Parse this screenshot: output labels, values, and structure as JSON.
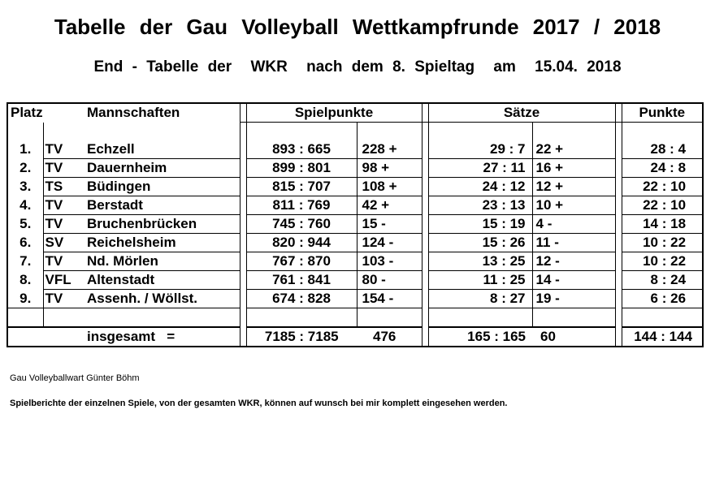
{
  "title": "Tabelle der Gau Volleyball Wettkampfrunde 2017 / 2018",
  "subtitle": {
    "part1": "End - Tabelle der",
    "part2": "WKR",
    "part3": "nach dem 8. Spieltag",
    "part4": "am",
    "part5": "15.04. 2018"
  },
  "headers": {
    "platz": "Platz",
    "mannschaften": "Mannschaften",
    "spielpunkte": "Spielpunkte",
    "saetze": "Sätze",
    "punkte": "Punkte"
  },
  "rows": [
    {
      "platz": "1.",
      "art": "TV",
      "name": "Echzell",
      "sp": "893 : 665",
      "spdiff": "228 +",
      "saetze": "29 : 7",
      "sdiff": "22 +",
      "punkte": "28 : 4"
    },
    {
      "platz": "2.",
      "art": "TV",
      "name": "Dauernheim",
      "sp": "899 : 801",
      "spdiff": "98 +",
      "saetze": "27 : 11",
      "sdiff": "16 +",
      "punkte": "24 : 8"
    },
    {
      "platz": "3.",
      "art": "TS",
      "name": "Büdingen",
      "sp": "815 : 707",
      "spdiff": "108 +",
      "saetze": "24 : 12",
      "sdiff": "12 +",
      "punkte": "22 : 10"
    },
    {
      "platz": "4.",
      "art": "TV",
      "name": "Berstadt",
      "sp": "811 : 769",
      "spdiff": "42 +",
      "saetze": "23 : 13",
      "sdiff": "10 +",
      "punkte": "22 : 10"
    },
    {
      "platz": "5.",
      "art": "TV",
      "name": "Bruchenbrücken",
      "sp": "745 : 760",
      "spdiff": "15 -",
      "saetze": "15 : 19",
      "sdiff": "4 -",
      "punkte": "14 : 18"
    },
    {
      "platz": "6.",
      "art": "SV",
      "name": "Reichelsheim",
      "sp": "820 : 944",
      "spdiff": "124 -",
      "saetze": "15 : 26",
      "sdiff": "11 -",
      "punkte": "10 : 22"
    },
    {
      "platz": "7.",
      "art": "TV",
      "name": "Nd. Mörlen",
      "sp": "767 : 870",
      "spdiff": "103 -",
      "saetze": "13 : 25",
      "sdiff": "12 -",
      "punkte": "10 : 22"
    },
    {
      "platz": "8.",
      "art": "VFL",
      "name": "Altenstadt",
      "sp": "761 : 841",
      "spdiff": "80 -",
      "saetze": "11 : 25",
      "sdiff": "14 -",
      "punkte": "8 : 24"
    },
    {
      "platz": "9.",
      "art": "TV",
      "name": "Assenh. / Wöllst.",
      "sp": "674 : 828",
      "spdiff": "154 -",
      "saetze": "8 : 27",
      "sdiff": "19 -",
      "punkte": "6 : 26"
    }
  ],
  "total": {
    "label": "insgesamt   =",
    "sp": "7185 : 7185",
    "spdiff": "476",
    "saetze": "165 : 165",
    "sdiff": "60",
    "punkte": "144 : 144"
  },
  "footer": {
    "author": "Gau Volleyballwart  Günter Böhm",
    "note": "Spielberichte der einzelnen Spiele, von der gesamten WKR, können auf wunsch bei mir komplett eingesehen werden."
  }
}
